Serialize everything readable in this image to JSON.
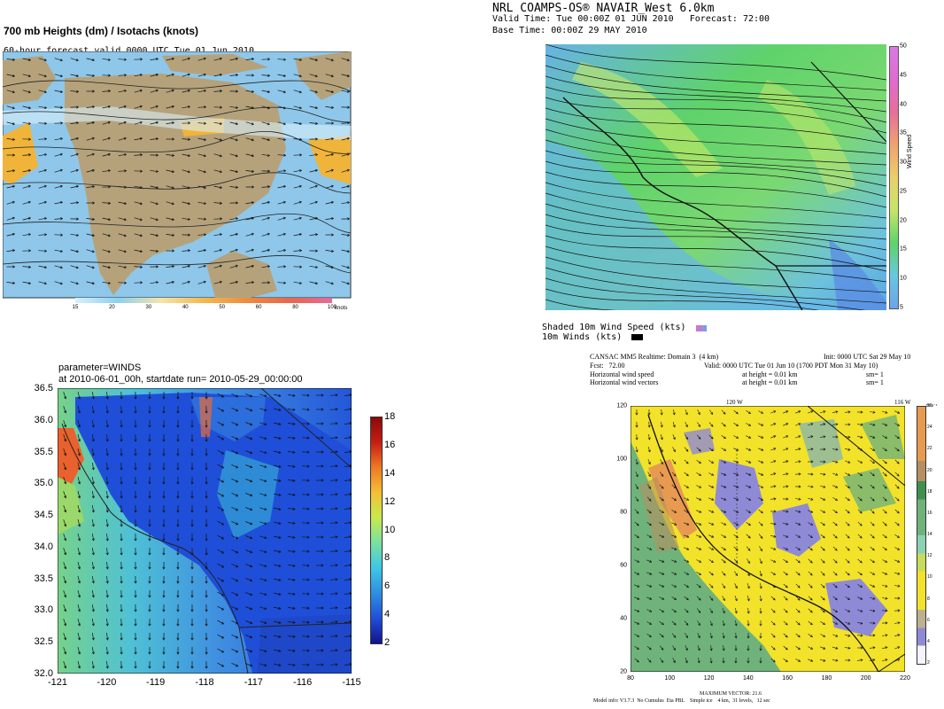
{
  "panel_tl": {
    "title": "700 mb Heights (dm) / Isotachs (knots)",
    "subtitle": "60-hour forecast valid 0000 UTC Tue 01 Jun 2010",
    "colorbar_ticks": [
      "15",
      "20",
      "30",
      "40",
      "50",
      "60",
      "80",
      "100"
    ],
    "colorbar_unit": "knots",
    "colors": {
      "ocean": "#8ec7ea",
      "land": "#b5a27b",
      "jet": "#f0b43a"
    }
  },
  "panel_tr": {
    "title_line1": "NRL COAMPS-OS® NAVAIR_West 6.0km",
    "title_line2": "Valid Time: Tue 00:00Z 01 JUN 2010   Forecast: 72:00",
    "title_line3": "Base Time: 00:00Z 29 MAY 2010",
    "colorbar_ticks": [
      "5",
      "10",
      "15",
      "20",
      "25",
      "30",
      "35",
      "40",
      "45",
      "50"
    ],
    "colorbar_label": "Wind Speed",
    "legend_line1": "Shaded 10m Wind Speed (kts)",
    "legend_line2": "10m Winds (kts)",
    "colors": {
      "low": "#66b3e8",
      "mid": "#5fd36a",
      "high": "#c9e96a"
    }
  },
  "panel_bl": {
    "title_line1": "parameter=WINDS",
    "title_line2": "at 2010-06-01_00h, startdate run= 2010-05-29_00:00:00",
    "y_ticks": [
      "36.5",
      "36.0",
      "35.5",
      "35.0",
      "34.5",
      "34.0",
      "33.5",
      "33.0",
      "32.5",
      "32.0"
    ],
    "x_ticks": [
      "-121",
      "-120",
      "-119",
      "-118",
      "-117",
      "-116",
      "-115"
    ],
    "colorbar_ticks": [
      "18",
      "16",
      "14",
      "12",
      "10",
      "8",
      "6",
      "4",
      "2"
    ],
    "colors": {
      "sea": "#59c6d6",
      "land": "#1e4fd8"
    }
  },
  "panel_br": {
    "header_left_1": "CANSAC MM5 Realtime: Domain 3  (4 km)",
    "header_right_1": "Init: 0000 UTC Sat 29 May 10",
    "header_left_2": "Fcst:   72.00",
    "header_right_2": "Valid: 0000 UTC Tue 01 Jun 10 (1700 PDT Mon 31 May 10)",
    "header_row_3": [
      "Horizontal wind speed",
      "at height = 0.01 km",
      "sm= 1"
    ],
    "header_row_4": [
      "Horizontal wind vectors",
      "at height = 0.01 km",
      "sm= 1"
    ],
    "top_ticks": [
      "120 W",
      "116 W"
    ],
    "y_ticks": [
      "120",
      "100",
      "80",
      "60",
      "40",
      "20"
    ],
    "x_ticks": [
      "80",
      "100",
      "120",
      "140",
      "160",
      "180",
      "200",
      "220"
    ],
    "colorbar_ticks": [
      "26",
      "24",
      "22",
      "20",
      "18",
      "16",
      "14",
      "12",
      "10",
      "8",
      "6",
      "4",
      "2"
    ],
    "colorbar_unit": "m s⁻¹",
    "footer_1": "MAXIMUM VECTOR: 21.6",
    "footer_2": "Model info: V3.7.3  No Cumulus  Eta PBL    Simple ice    4 km,  31 levels,   12 sec",
    "colors": {
      "yellow": "#f2e22a",
      "green": "#6fb37a",
      "purple": "#8f8ad6",
      "orange": "#e89a50"
    }
  }
}
